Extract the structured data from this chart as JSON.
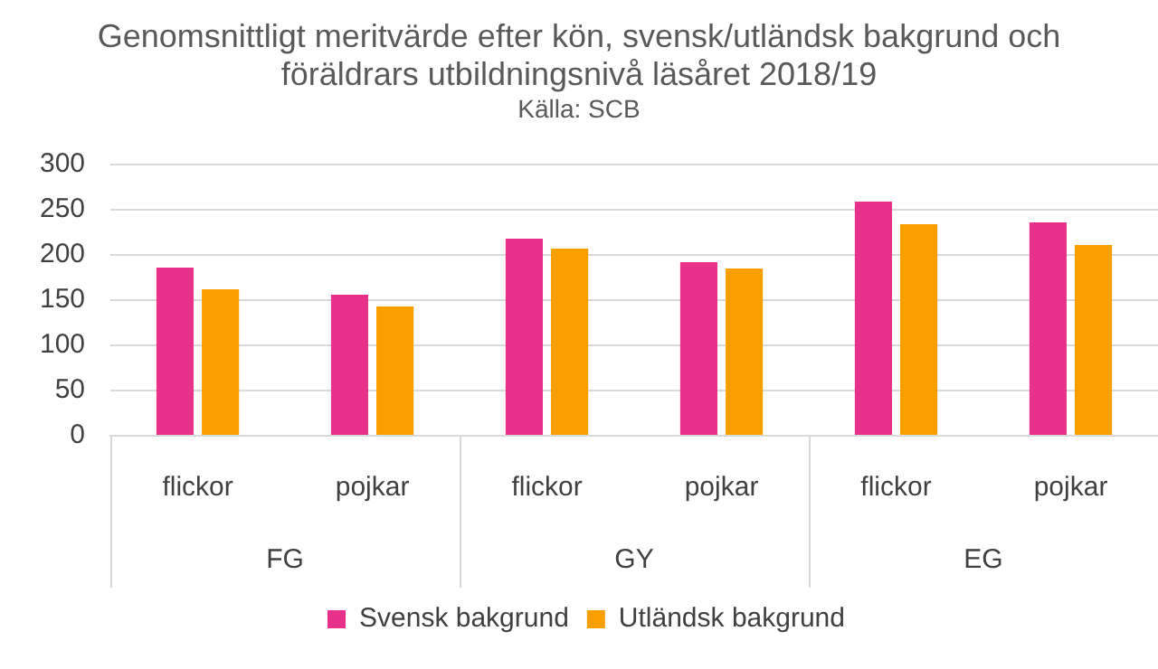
{
  "chart_data": {
    "type": "bar",
    "title": "Genomsnittligt meritvärde efter kön, svensk/utländsk bakgrund och föräldrars utbildningsnivå läsåret 2018/19",
    "subtitle": "Källa: SCB",
    "categories": [
      "flickor",
      "pojkar",
      "flickor",
      "pojkar",
      "flickor",
      "pojkar"
    ],
    "series": [
      {
        "name": "Svensk bakgrund",
        "color": "#e8318a",
        "values": [
          186,
          156,
          218,
          192,
          259,
          236
        ]
      },
      {
        "name": "Utländsk bakgrund",
        "color": "#f9a000",
        "values": [
          162,
          143,
          207,
          185,
          234,
          211
        ]
      }
    ],
    "annotations": [
      "FG",
      "GY",
      "EG"
    ],
    "ylim": [
      0,
      300
    ],
    "yticks": [
      0,
      50,
      100,
      150,
      200,
      250,
      300
    ],
    "grid": "y",
    "legend": "bottom"
  }
}
